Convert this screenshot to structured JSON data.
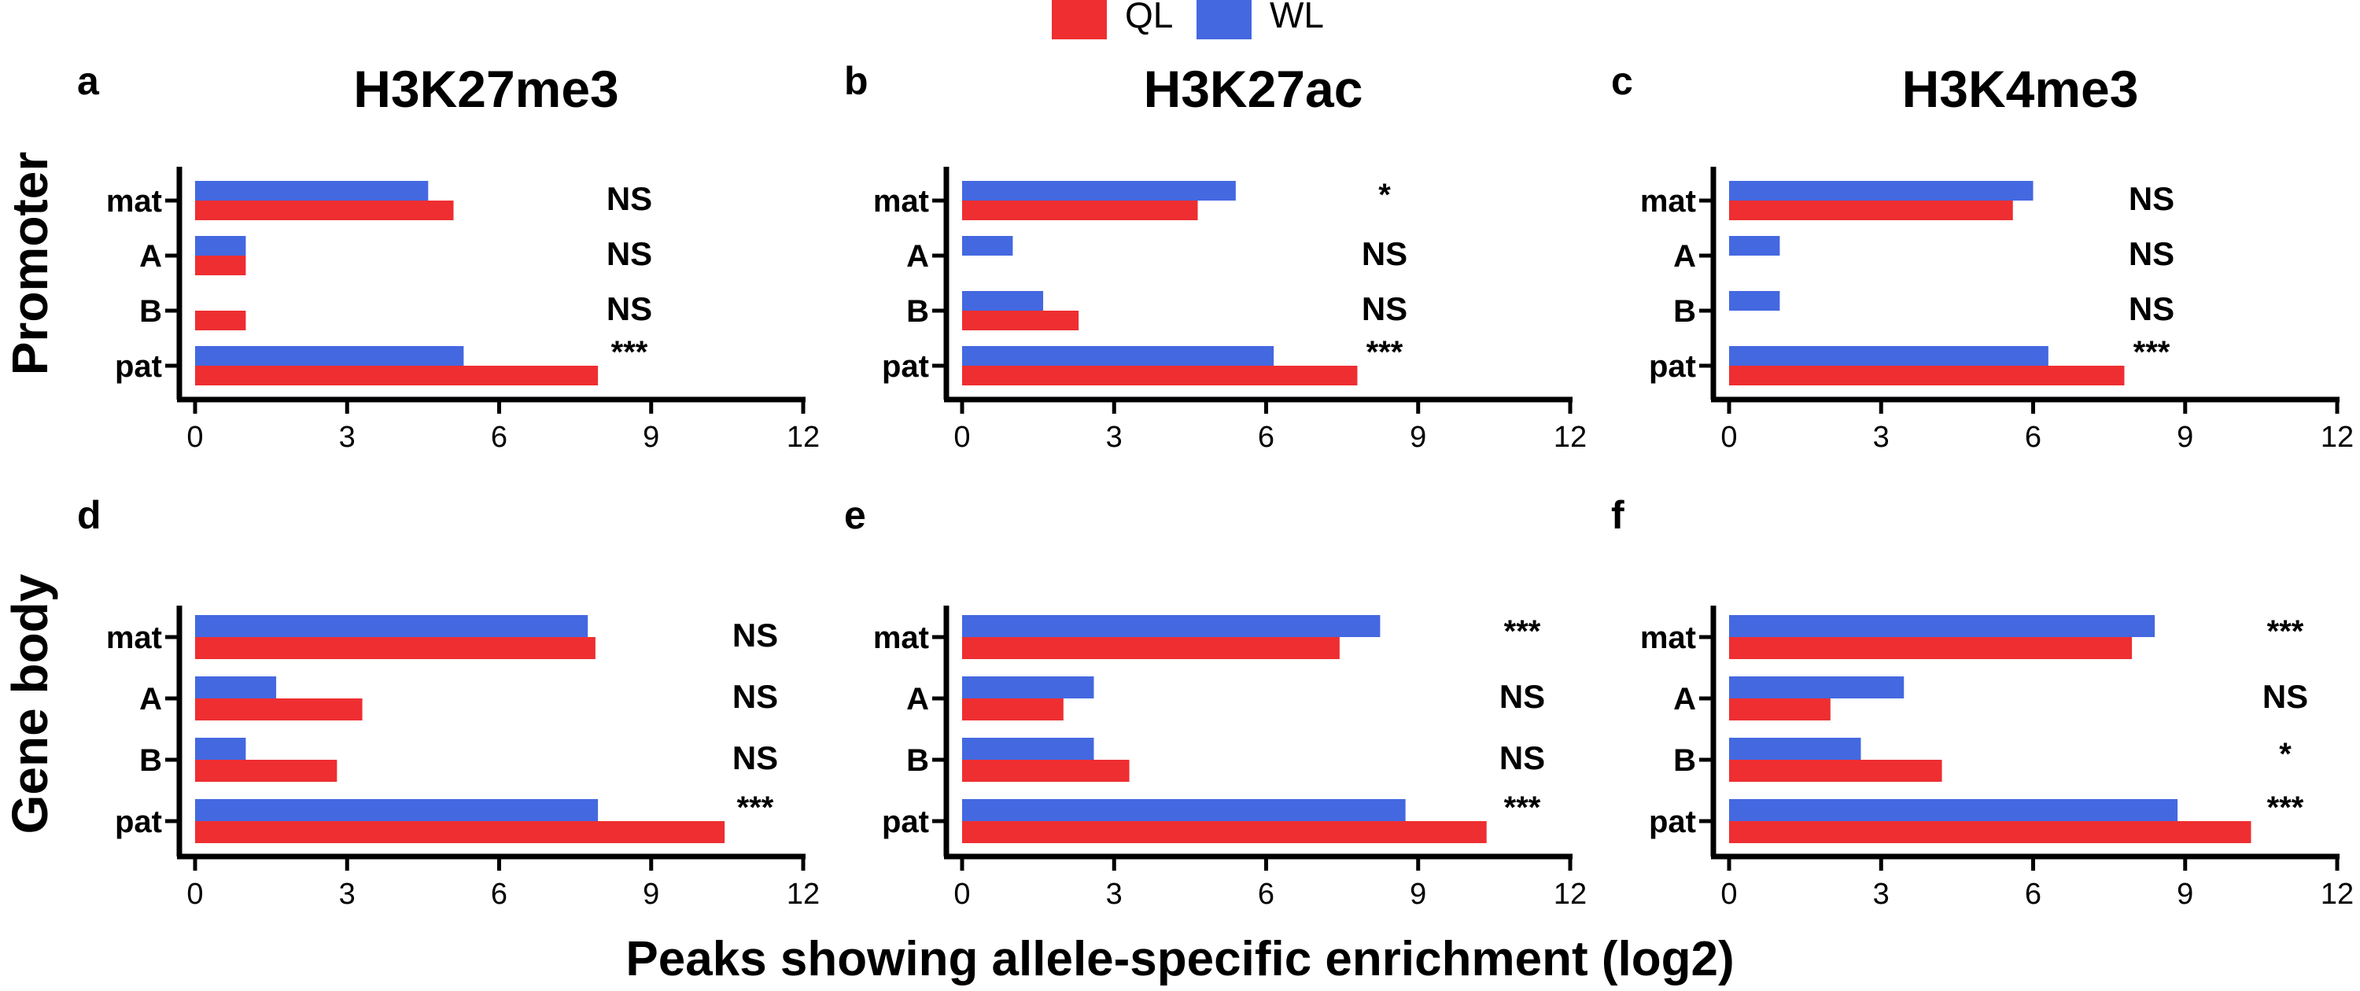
{
  "colors": {
    "QL": "#ee2e31",
    "WL": "#4468e0"
  },
  "legend": [
    {
      "label": "QL",
      "color": "#ee2e31"
    },
    {
      "label": "WL",
      "color": "#4468e0"
    }
  ],
  "row_labels": [
    "Promoter",
    "Gene body"
  ],
  "shared_xlabel": "Peaks showing allele-specific enrichment (log2)",
  "chart_data": [
    {
      "type": "bar",
      "orientation": "horizontal",
      "panel": "a",
      "title": "H3K27me3",
      "categories": [
        "mat",
        "A",
        "B",
        "pat"
      ],
      "series": [
        {
          "name": "WL",
          "values": [
            4.6,
            1.0,
            0.0,
            5.3
          ]
        },
        {
          "name": "QL",
          "values": [
            5.1,
            1.0,
            1.0,
            7.95
          ]
        }
      ],
      "significance": [
        "NS",
        "NS",
        "NS",
        "***"
      ],
      "xlim": [
        0,
        12
      ],
      "xticks": [
        "0",
        "3",
        "6",
        "9",
        "12"
      ]
    },
    {
      "type": "bar",
      "orientation": "horizontal",
      "panel": "b",
      "title": "H3K27ac",
      "categories": [
        "mat",
        "A",
        "B",
        "pat"
      ],
      "series": [
        {
          "name": "WL",
          "values": [
            5.4,
            1.0,
            1.6,
            6.15
          ]
        },
        {
          "name": "QL",
          "values": [
            4.65,
            0.0,
            2.3,
            7.8
          ]
        }
      ],
      "significance": [
        "*",
        "NS",
        "NS",
        "***"
      ],
      "xlim": [
        0,
        12
      ],
      "xticks": [
        "0",
        "3",
        "6",
        "9",
        "12"
      ]
    },
    {
      "type": "bar",
      "orientation": "horizontal",
      "panel": "c",
      "title": "H3K4me3",
      "categories": [
        "mat",
        "A",
        "B",
        "pat"
      ],
      "series": [
        {
          "name": "WL",
          "values": [
            6.0,
            1.0,
            1.0,
            6.3
          ]
        },
        {
          "name": "QL",
          "values": [
            5.6,
            0.0,
            0.0,
            7.8
          ]
        }
      ],
      "significance": [
        "NS",
        "NS",
        "NS",
        "***"
      ],
      "xlim": [
        0,
        12
      ],
      "xticks": [
        "0",
        "3",
        "6",
        "9",
        "12"
      ]
    },
    {
      "type": "bar",
      "orientation": "horizontal",
      "panel": "d",
      "title": "",
      "categories": [
        "mat",
        "A",
        "B",
        "pat"
      ],
      "series": [
        {
          "name": "WL",
          "values": [
            7.75,
            1.6,
            1.0,
            7.95
          ]
        },
        {
          "name": "QL",
          "values": [
            7.9,
            3.3,
            2.8,
            10.45
          ]
        }
      ],
      "significance": [
        "NS",
        "NS",
        "NS",
        "***"
      ],
      "xlim": [
        0,
        12
      ],
      "xticks": [
        "0",
        "3",
        "6",
        "9",
        "12"
      ]
    },
    {
      "type": "bar",
      "orientation": "horizontal",
      "panel": "e",
      "title": "",
      "categories": [
        "mat",
        "A",
        "B",
        "pat"
      ],
      "series": [
        {
          "name": "WL",
          "values": [
            8.25,
            2.6,
            2.6,
            8.75
          ]
        },
        {
          "name": "QL",
          "values": [
            7.45,
            2.0,
            3.3,
            10.35
          ]
        }
      ],
      "significance": [
        "***",
        "NS",
        "NS",
        "***"
      ],
      "xlim": [
        0,
        12
      ],
      "xticks": [
        "0",
        "3",
        "6",
        "9",
        "12"
      ]
    },
    {
      "type": "bar",
      "orientation": "horizontal",
      "panel": "f",
      "title": "",
      "categories": [
        "mat",
        "A",
        "B",
        "pat"
      ],
      "series": [
        {
          "name": "WL",
          "values": [
            8.4,
            3.45,
            2.6,
            8.85
          ]
        },
        {
          "name": "QL",
          "values": [
            7.95,
            2.0,
            4.2,
            10.3
          ]
        }
      ],
      "significance": [
        "***",
        "NS",
        "*",
        "***"
      ],
      "xlim": [
        0,
        12
      ],
      "xticks": [
        "0",
        "3",
        "6",
        "9",
        "12"
      ]
    }
  ]
}
